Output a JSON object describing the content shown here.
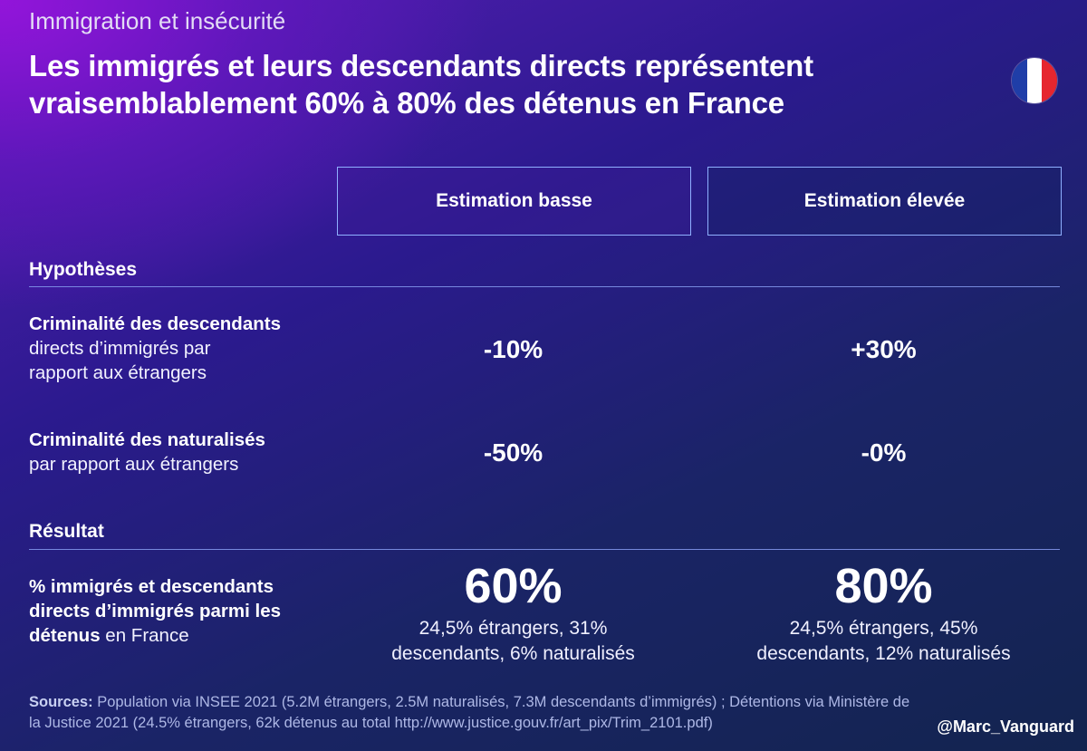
{
  "kicker": "Immigration et insécurité",
  "title_line1": "Les immigrés et leurs descendants directs représentent",
  "title_line2": "vraisemblablement 60% à 80% des détenus en France",
  "flag": {
    "colors": [
      "#1f3ea8",
      "#ffffff",
      "#e6262f"
    ]
  },
  "columns": {
    "low": "Estimation basse",
    "high": "Estimation élevée"
  },
  "sections": {
    "hypotheses": "Hypothèses",
    "result": "Résultat"
  },
  "row1": {
    "bold": "Criminalité des descendants",
    "line2": "directs d’immigrés par",
    "line3": "rapport aux étrangers",
    "low": "-10%",
    "high": "+30%"
  },
  "row2": {
    "bold": "Criminalité des naturalisés",
    "line2": "par rapport aux étrangers",
    "low": "-50%",
    "high": "-0%"
  },
  "result_row": {
    "bold1": "% immigrés et descendants",
    "bold2": "directs d’immigrés parmi les",
    "bold3": "détenus",
    "tail3": " en France",
    "low_value": "60%",
    "low_detail1": "24,5% étrangers, 31%",
    "low_detail2": "descendants, 6% naturalisés",
    "high_value": "80%",
    "high_detail1": "24,5% étrangers, 45%",
    "high_detail2": "descendants, 12% naturalisés"
  },
  "sources": {
    "label": "Sources:",
    "line1": " Population via INSEE 2021 (5.2M étrangers, 2.5M naturalisés, 7.3M descendants d’immigrés) ; Détentions via Ministère de",
    "line2": "la Justice 2021 (24.5% étrangers, 62k détenus au total http://www.justice.gouv.fr/art_pix/Trim_2101.pdf)"
  },
  "handle": "@Marc_Vanguard"
}
